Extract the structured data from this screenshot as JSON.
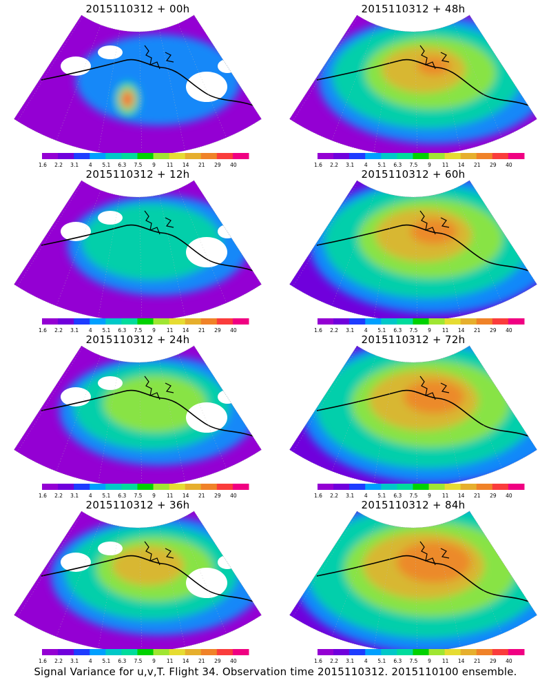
{
  "panels": [
    {
      "title": "2015110312 + 00h",
      "intensity": 0
    },
    {
      "title": "2015110312 + 48h",
      "intensity": 4
    },
    {
      "title": "2015110312 + 12h",
      "intensity": 1
    },
    {
      "title": "2015110312 + 60h",
      "intensity": 5
    },
    {
      "title": "2015110312 + 24h",
      "intensity": 2
    },
    {
      "title": "2015110312 + 72h",
      "intensity": 6
    },
    {
      "title": "2015110312 + 36h",
      "intensity": 3
    },
    {
      "title": "2015110312 + 84h",
      "intensity": 7
    }
  ],
  "colorbar": {
    "labels": [
      "1.6",
      "2.2",
      "3.1",
      "4",
      "5.1",
      "6.3",
      "7.5",
      "9",
      "11",
      "14",
      "21",
      "29",
      "40"
    ],
    "colors": [
      "#9400d3",
      "#7000dc",
      "#1e3cff",
      "#00a0ff",
      "#00c8c8",
      "#00dc9c",
      "#00d200",
      "#a0e632",
      "#e6dc32",
      "#e6af2d",
      "#f08228",
      "#fa3c3c",
      "#f00082"
    ]
  },
  "caption": "Signal Variance for u,v,T. Flight 34. Observation time 2015110312. 2015110100 ensemble."
}
